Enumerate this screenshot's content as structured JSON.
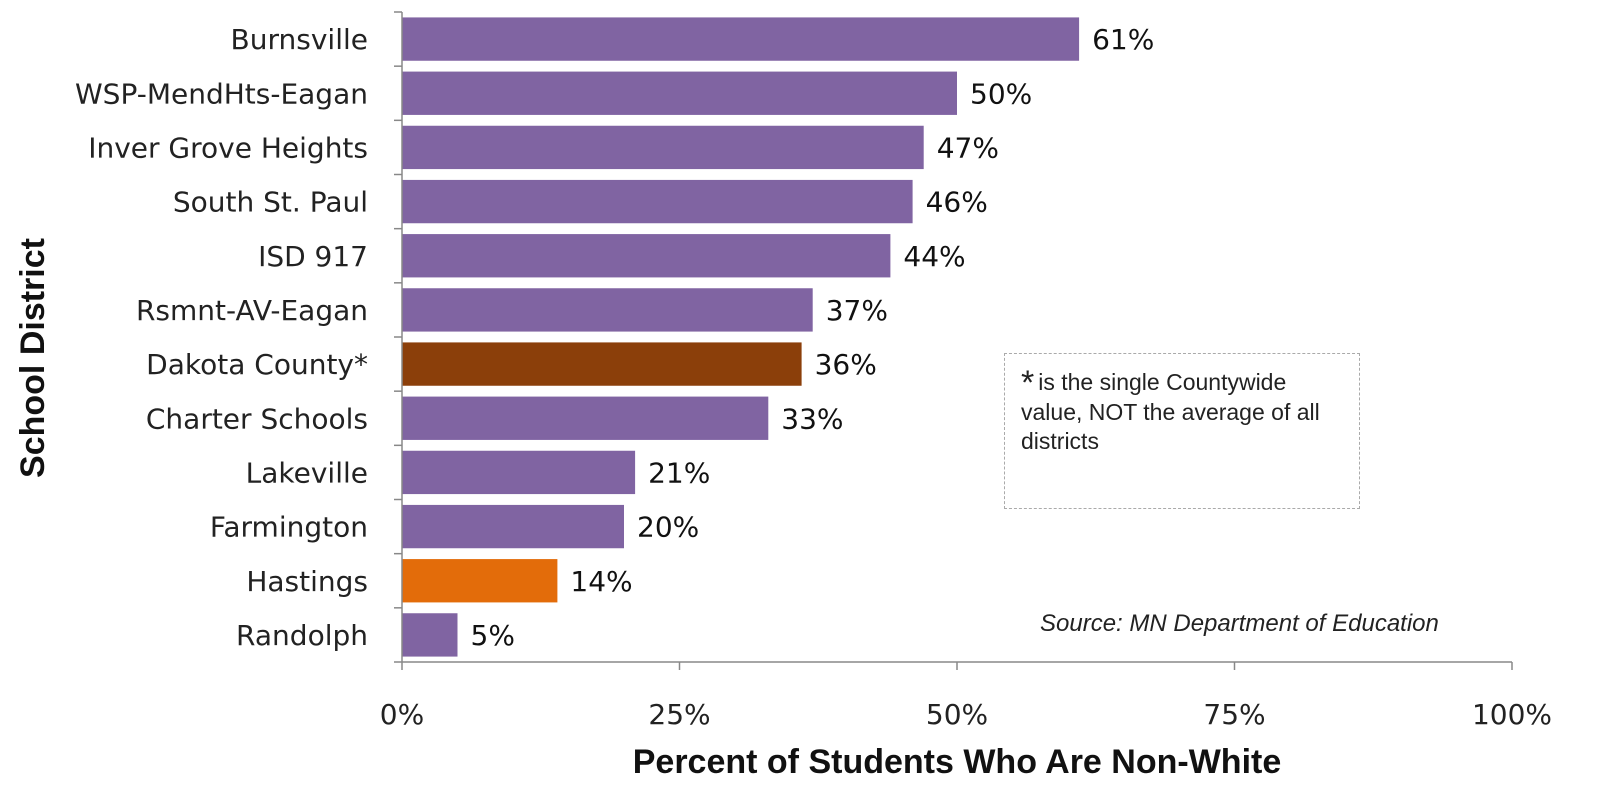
{
  "chart_data": {
    "type": "bar",
    "orientation": "horizontal",
    "title": "",
    "xlabel": "Percent of Students Who Are Non-White",
    "ylabel": "School District",
    "xlim": [
      0,
      100
    ],
    "x_ticks": [
      "0%",
      "25%",
      "50%",
      "75%",
      "100%"
    ],
    "x_tick_values": [
      0,
      25,
      50,
      75,
      100
    ],
    "categories": [
      "Burnsville",
      "WSP-MendHts-Eagan",
      "Inver Grove Heights",
      "South St. Paul",
      "ISD 917",
      "Rsmnt-AV-Eagan",
      "Dakota County*",
      "Charter Schools",
      "Lakeville",
      "Farmington",
      "Hastings",
      "Randolph"
    ],
    "values": [
      61,
      50,
      47,
      46,
      44,
      37,
      36,
      33,
      21,
      20,
      14,
      5
    ],
    "data_labels": [
      "61%",
      "50%",
      "47%",
      "46%",
      "44%",
      "37%",
      "36%",
      "33%",
      "21%",
      "20%",
      "14%",
      "5%"
    ],
    "bar_colors": [
      "#8064a2",
      "#8064a2",
      "#8064a2",
      "#8064a2",
      "#8064a2",
      "#8064a2",
      "#8b3f0a",
      "#8064a2",
      "#8064a2",
      "#8064a2",
      "#e36c0a",
      "#8064a2"
    ],
    "grid": false,
    "legend": "none"
  },
  "note": {
    "star": "*",
    "text": "is the single Countywide value, NOT the average of all districts"
  },
  "source": "Source: MN Department of Education"
}
